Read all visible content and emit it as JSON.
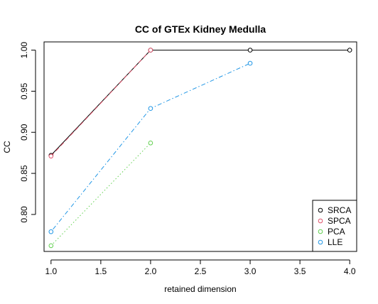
{
  "chart_data": {
    "type": "line",
    "title": "CC of GTEx Kidney Medulla",
    "xlabel": "retained dimension",
    "ylabel": "CC",
    "xlim": [
      0.93,
      4.07
    ],
    "ylim": [
      0.755,
      1.01
    ],
    "xticks": [
      1.0,
      1.5,
      2.0,
      2.5,
      3.0,
      3.5,
      4.0
    ],
    "xtick_labels": [
      "1.0",
      "1.5",
      "2.0",
      "2.5",
      "3.0",
      "3.5",
      "4.0"
    ],
    "yticks": [
      0.8,
      0.85,
      0.9,
      0.95,
      1.0
    ],
    "ytick_labels": [
      "0.80",
      "0.85",
      "0.90",
      "0.95",
      "1.00"
    ],
    "grid": false,
    "legend_position": "bottom-right",
    "series": [
      {
        "name": "SRCA",
        "color": "#000000",
        "dash": "solid",
        "x": [
          1,
          2,
          3,
          4
        ],
        "y": [
          0.872,
          1.0,
          1.0,
          1.0
        ]
      },
      {
        "name": "SPCA",
        "color": "#DF536B",
        "dash": "dashed",
        "x": [
          1,
          2
        ],
        "y": [
          0.871,
          1.0
        ]
      },
      {
        "name": "PCA",
        "color": "#61D04F",
        "dash": "dotted",
        "x": [
          1,
          2
        ],
        "y": [
          0.762,
          0.887
        ]
      },
      {
        "name": "LLE",
        "color": "#2297E6",
        "dash": "dotdash",
        "x": [
          1,
          2,
          3
        ],
        "y": [
          0.779,
          0.929,
          0.984
        ]
      }
    ]
  }
}
